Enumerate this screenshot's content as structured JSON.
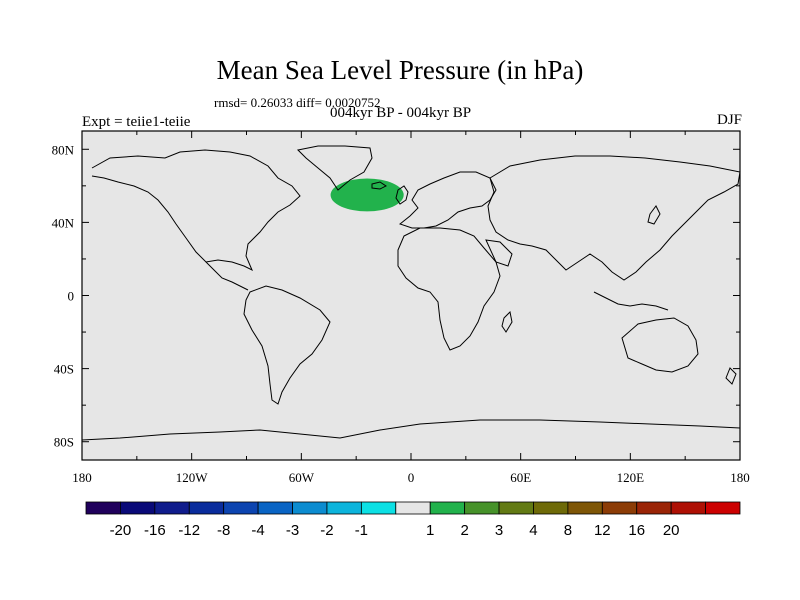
{
  "title": "Mean Sea Level Pressure (in hPa)",
  "stats": "rmsd= 0.26033 diff= 0.0020752",
  "subtitle": "004kyr BP - 004kyr BP",
  "left_label": "Expt = teiie1-teiie",
  "season": "DJF",
  "map": {
    "background_color": "#e6e6e6",
    "lat_ticks": [
      {
        "lat": 80,
        "label": "80N"
      },
      {
        "lat": 40,
        "label": "40N"
      },
      {
        "lat": 0,
        "label": "0"
      },
      {
        "lat": -40,
        "label": "40S"
      },
      {
        "lat": -80,
        "label": "80S"
      }
    ],
    "lon_ticks": [
      {
        "lon": -180,
        "label": "180"
      },
      {
        "lon": -120,
        "label": "120W"
      },
      {
        "lon": -60,
        "label": "60W"
      },
      {
        "lon": 0,
        "label": "0"
      },
      {
        "lon": 60,
        "label": "60E"
      },
      {
        "lon": 120,
        "label": "120E"
      },
      {
        "lon": 180,
        "label": "180"
      }
    ],
    "anomaly_region": {
      "center_lon": -24,
      "center_lat": 55,
      "half_width_lon": 20,
      "half_height_lat": 9,
      "color": "#22b24c",
      "range": "1 to 2"
    }
  },
  "colorbar": {
    "colors": [
      "#20005c",
      "#0a0a78",
      "#101c8c",
      "#0a2c9c",
      "#0c44b0",
      "#0a64c4",
      "#0c8cd0",
      "#0cb4dc",
      "#0ce0e4",
      "#e6e6e6",
      "#22b24c",
      "#46922a",
      "#627a14",
      "#6e6a08",
      "#7e5606",
      "#8c3c06",
      "#9a2406",
      "#ae1004",
      "#cc0000"
    ],
    "labels": [
      "-20",
      "-16",
      "-12",
      "-8",
      "-4",
      "-3",
      "-2",
      "-1",
      "1",
      "2",
      "3",
      "4",
      "8",
      "12",
      "16",
      "20"
    ]
  }
}
